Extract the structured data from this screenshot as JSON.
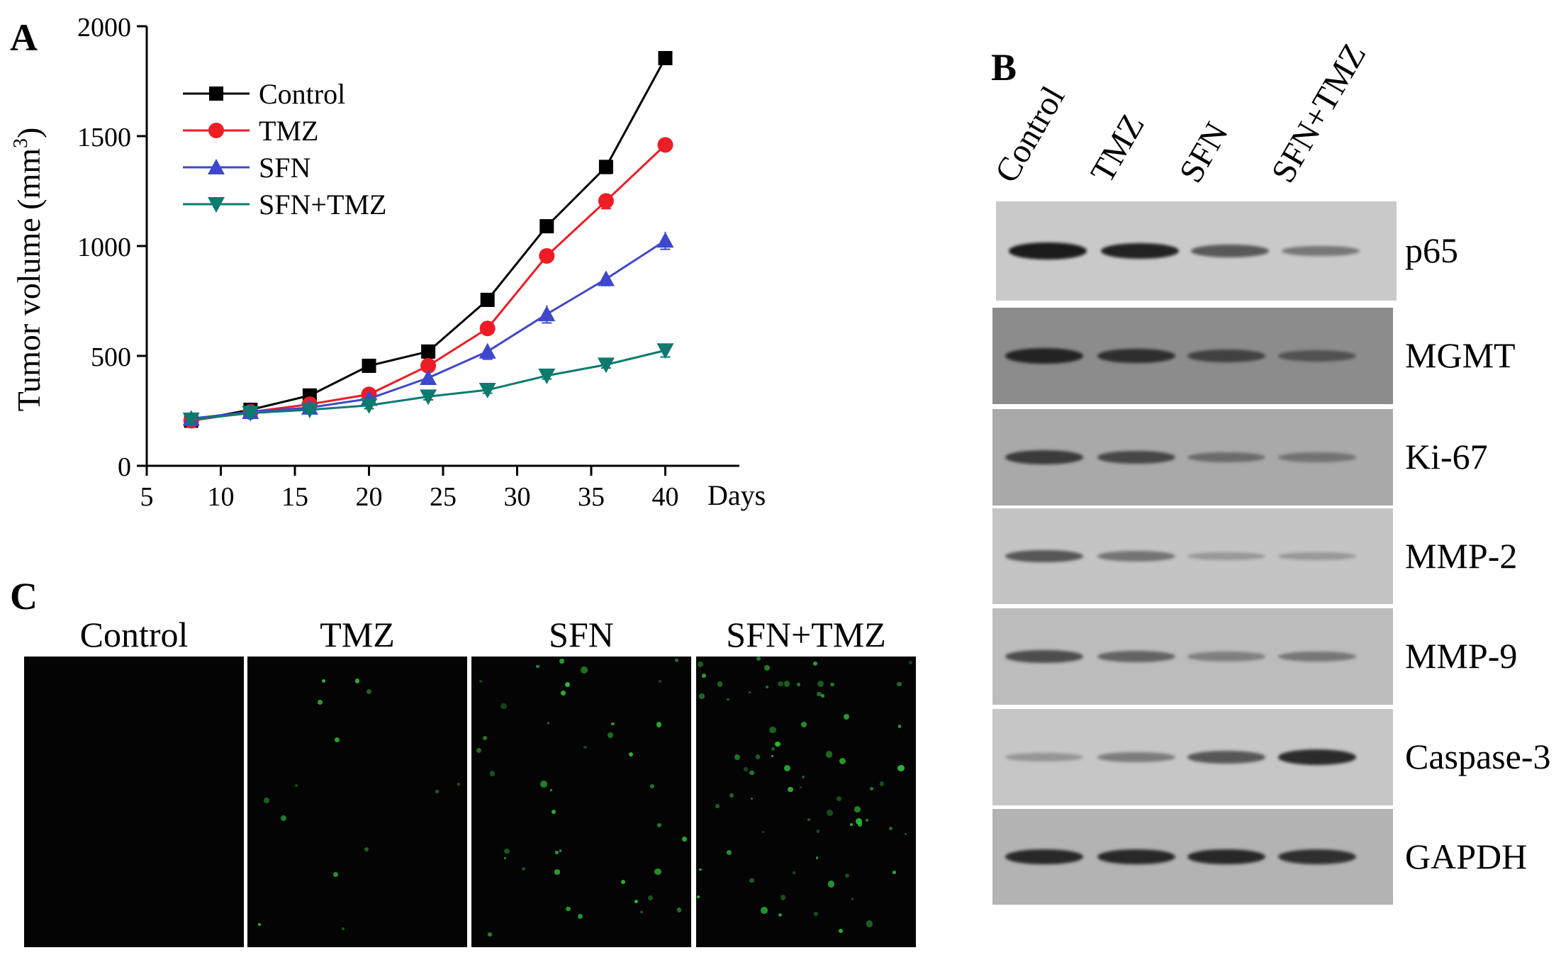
{
  "panels": {
    "a": "A",
    "b": "B",
    "c": "C"
  },
  "chart_data": {
    "type": "line",
    "xlabel": "Days",
    "ylabel": "Tumor volume (mm",
    "ylabel_sup": "3",
    "ylabel_close": ")",
    "xlim": [
      5,
      45
    ],
    "ylim": [
      0,
      2000
    ],
    "xticks": [
      5,
      10,
      15,
      20,
      25,
      30,
      35,
      40
    ],
    "yticks": [
      0,
      500,
      1000,
      1500,
      2000
    ],
    "grid": false,
    "legend_position": "top-left",
    "x": [
      8,
      12,
      16,
      20,
      24,
      28,
      32,
      36,
      40
    ],
    "series": [
      {
        "name": "Control",
        "color": "#000000",
        "marker": "square",
        "values": [
          205,
          255,
          320,
          455,
          520,
          755,
          1090,
          1360,
          1855
        ],
        "errors": [
          20,
          15,
          30,
          25,
          30,
          20,
          25,
          30,
          20
        ]
      },
      {
        "name": "TMZ",
        "color": "#ee1c25",
        "marker": "circle",
        "values": [
          205,
          245,
          280,
          325,
          455,
          625,
          955,
          1205,
          1460
        ],
        "errors": [
          15,
          15,
          20,
          25,
          25,
          20,
          20,
          35,
          15
        ]
      },
      {
        "name": "SFN",
        "color": "#3f48cc",
        "marker": "triangle-up",
        "values": [
          215,
          245,
          265,
          305,
          400,
          520,
          690,
          850,
          1025
        ],
        "errors": [
          15,
          15,
          15,
          20,
          20,
          35,
          40,
          30,
          40
        ]
      },
      {
        "name": "SFN+TMZ",
        "color": "#0d7a6e",
        "marker": "triangle-down",
        "values": [
          210,
          240,
          255,
          275,
          315,
          345,
          410,
          460,
          525
        ],
        "errors": [
          15,
          10,
          15,
          15,
          15,
          15,
          15,
          15,
          30
        ]
      }
    ]
  },
  "western_blot": {
    "lanes": [
      "Control",
      "TMZ",
      "SFN",
      "SFN+TMZ"
    ],
    "rows": [
      {
        "protein": "p65",
        "bg": "#c9c9c9",
        "bands": [
          0.95,
          0.9,
          0.55,
          0.35
        ]
      },
      {
        "protein": "MGMT",
        "bg": "#8c8c8c",
        "bands": [
          0.85,
          0.75,
          0.55,
          0.4
        ]
      },
      {
        "protein": "Ki-67",
        "bg": "#a9a9a9",
        "bands": [
          0.7,
          0.6,
          0.3,
          0.25
        ]
      },
      {
        "protein": "MMP-2",
        "bg": "#c4c4c4",
        "bands": [
          0.55,
          0.35,
          0.12,
          0.12
        ]
      },
      {
        "protein": "MMP-9",
        "bg": "#bcbcbc",
        "bands": [
          0.6,
          0.45,
          0.25,
          0.3
        ]
      },
      {
        "protein": "Caspase-3",
        "bg": "#c6c6c6",
        "bands": [
          0.15,
          0.3,
          0.55,
          0.85
        ]
      },
      {
        "protein": "GAPDH",
        "bg": "#b3b3b3",
        "bands": [
          0.85,
          0.85,
          0.85,
          0.8
        ]
      }
    ]
  },
  "fluorescence": {
    "panels": [
      {
        "title": "Control",
        "signal": 0.0
      },
      {
        "title": "TMZ",
        "signal": 0.2
      },
      {
        "title": "SFN",
        "signal": 0.55
      },
      {
        "title": "SFN+TMZ",
        "signal": 1.0
      }
    ]
  }
}
